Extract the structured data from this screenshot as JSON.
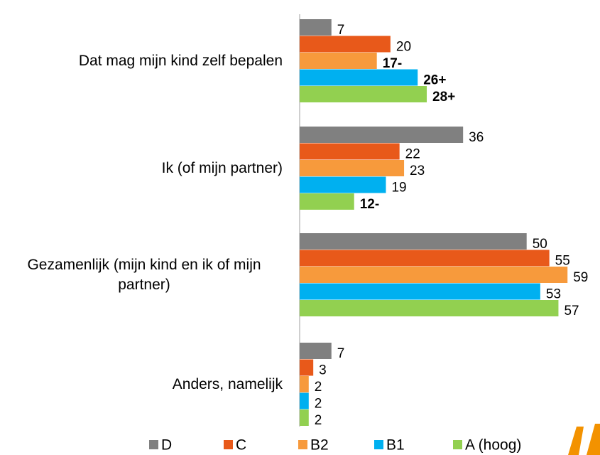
{
  "chart_data": {
    "type": "bar",
    "orientation": "horizontal",
    "categories": [
      "Dat mag mijn kind zelf bepalen",
      "Ik (of mijn partner)",
      "Gezamenlijk (mijn kind en ik of mijn partner)",
      "Anders, namelijk"
    ],
    "series": [
      {
        "name": "D",
        "color": "#808080",
        "values": [
          7,
          36,
          50,
          7
        ]
      },
      {
        "name": "C",
        "color": "#e8591a",
        "values": [
          20,
          22,
          55,
          3
        ]
      },
      {
        "name": "B2",
        "color": "#f79a3c",
        "values": [
          17,
          23,
          59,
          2
        ],
        "value_labels": [
          "17-",
          "23",
          "59",
          "2"
        ]
      },
      {
        "name": "B1",
        "color": "#00b0f0",
        "values": [
          26,
          19,
          53,
          2
        ],
        "value_labels": [
          "26+",
          "19",
          "53",
          "2"
        ]
      },
      {
        "name": "A (hoog)",
        "color": "#92d050",
        "values": [
          28,
          12,
          57,
          2
        ],
        "value_labels": [
          "28+",
          "12-",
          "57",
          "2"
        ]
      }
    ],
    "xlim": [
      0,
      66
    ],
    "legend": "bottom"
  }
}
